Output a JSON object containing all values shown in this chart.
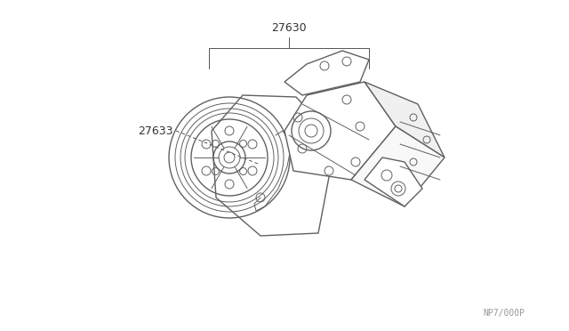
{
  "bg_color": "#ffffff",
  "line_color": "#606060",
  "label_color": "#333333",
  "watermark_color": "#999999",
  "part_label_27630": "27630",
  "part_label_27633": "27633",
  "watermark": "NP7/000P",
  "fig_width": 6.4,
  "fig_height": 3.72,
  "dpi": 100,
  "leader_color": "#555555",
  "leader_lw": 0.8
}
